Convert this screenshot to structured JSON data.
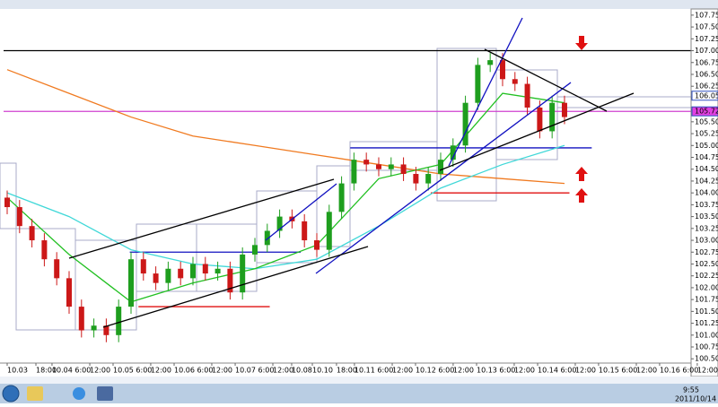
{
  "chart_data": {
    "type": "candlestick",
    "open": [
      103.9,
      103.7,
      103.3,
      103.0,
      102.6,
      102.2,
      101.6,
      101.1,
      101.2,
      101.0,
      101.6,
      102.6,
      102.3,
      102.1,
      102.4,
      102.2,
      102.5,
      102.3,
      102.4,
      101.9,
      102.7,
      102.9,
      103.2,
      103.5,
      103.4,
      103.0,
      102.8,
      103.6,
      104.2,
      104.7,
      104.6,
      104.5,
      104.6,
      104.4,
      104.2,
      104.4,
      104.7,
      105.0,
      105.9,
      106.7,
      106.8,
      106.4,
      106.3,
      105.8,
      105.3,
      105.9
    ],
    "high": [
      104.05,
      103.85,
      103.45,
      103.15,
      102.75,
      102.35,
      101.75,
      101.35,
      101.35,
      101.75,
      102.75,
      102.75,
      102.45,
      102.55,
      102.55,
      102.65,
      102.65,
      102.55,
      102.55,
      102.85,
      103.05,
      103.35,
      103.65,
      103.65,
      103.55,
      103.15,
      103.75,
      104.35,
      104.85,
      104.85,
      104.75,
      104.75,
      104.75,
      104.55,
      104.55,
      104.85,
      105.15,
      106.05,
      106.85,
      106.95,
      106.95,
      106.55,
      106.45,
      105.95,
      106.05,
      106.05
    ],
    "low": [
      103.55,
      103.15,
      102.85,
      102.45,
      102.05,
      101.45,
      100.95,
      100.95,
      100.85,
      100.85,
      101.45,
      102.15,
      101.95,
      101.95,
      102.05,
      102.05,
      102.15,
      102.15,
      101.75,
      101.75,
      102.55,
      102.75,
      103.05,
      103.25,
      102.85,
      102.65,
      102.65,
      103.45,
      104.05,
      104.45,
      104.35,
      104.35,
      104.25,
      104.05,
      104.05,
      104.25,
      104.55,
      104.85,
      105.75,
      106.55,
      106.25,
      106.15,
      105.65,
      105.15,
      105.15,
      105.45
    ],
    "close": [
      103.7,
      103.3,
      103.0,
      102.6,
      102.2,
      101.6,
      101.1,
      101.2,
      101.0,
      101.6,
      102.6,
      102.3,
      102.1,
      102.4,
      102.2,
      102.5,
      102.3,
      102.4,
      101.9,
      102.7,
      102.9,
      103.2,
      103.5,
      103.4,
      103.0,
      102.8,
      103.6,
      104.2,
      104.7,
      104.6,
      104.5,
      104.6,
      104.4,
      104.2,
      104.4,
      104.7,
      105.0,
      105.9,
      106.7,
      106.8,
      106.4,
      106.3,
      105.8,
      105.3,
      105.9,
      105.6
    ],
    "up_color": "#1e9e1e",
    "down_color": "#cc1818",
    "xlim": [
      -0.29,
      55.22
    ],
    "ylim": [
      100.41,
      107.88
    ],
    "yticks": [
      {
        "value": 107.75,
        "label": "107.750"
      },
      {
        "value": 107.5,
        "label": "107.500"
      },
      {
        "value": 107.25,
        "label": "107.250"
      },
      {
        "value": 107,
        "label": "107.000"
      },
      {
        "value": 106.75,
        "label": "106.750"
      },
      {
        "value": 106.5,
        "label": "106.500"
      },
      {
        "value": 106.25,
        "label": "106.250"
      },
      {
        "value": 106,
        "label": "106.000"
      },
      {
        "value": 105.75,
        "label": "105.750"
      },
      {
        "value": 105.5,
        "label": "105.500"
      },
      {
        "value": 105.25,
        "label": "105.250"
      },
      {
        "value": 105,
        "label": "105.000"
      },
      {
        "value": 104.75,
        "label": "104.750"
      },
      {
        "value": 104.5,
        "label": "104.500"
      },
      {
        "value": 104.25,
        "label": "104.250"
      },
      {
        "value": 104,
        "label": "104.000"
      },
      {
        "value": 103.75,
        "label": "103.750"
      },
      {
        "value": 103.5,
        "label": "103.500"
      },
      {
        "value": 103.25,
        "label": "103.250"
      },
      {
        "value": 103,
        "label": "103.000"
      },
      {
        "value": 102.75,
        "label": "102.750"
      },
      {
        "value": 102.5,
        "label": "102.500"
      },
      {
        "value": 102.25,
        "label": "102.250"
      },
      {
        "value": 102,
        "label": "102.000"
      },
      {
        "value": 101.75,
        "label": "101.750"
      },
      {
        "value": 101.5,
        "label": "101.500"
      },
      {
        "value": 101.25,
        "label": "101.250"
      },
      {
        "value": 101,
        "label": "101.000"
      },
      {
        "value": 100.75,
        "label": "100.750"
      },
      {
        "value": 100.5,
        "label": "100.500"
      }
    ],
    "xticks": [
      {
        "value": 0,
        "label": "10.03"
      },
      {
        "value": 2.32,
        "label": "18:00"
      },
      {
        "value": 3.62,
        "label": "10.04 6:00"
      },
      {
        "value": 6.67,
        "label": "12:00"
      },
      {
        "value": 8.55,
        "label": "10.05 6:00"
      },
      {
        "value": 11.59,
        "label": "12:00"
      },
      {
        "value": 13.48,
        "label": "10.06 6:00"
      },
      {
        "value": 16.52,
        "label": "12:00"
      },
      {
        "value": 18.41,
        "label": "10.07 6:00"
      },
      {
        "value": 21.45,
        "label": "12:00"
      },
      {
        "value": 22.97,
        "label": "10.08"
      },
      {
        "value": 24.64,
        "label": "10.10"
      },
      {
        "value": 26.59,
        "label": "18:00"
      },
      {
        "value": 28.04,
        "label": "10.11 6:00"
      },
      {
        "value": 31.09,
        "label": "12:00"
      },
      {
        "value": 32.97,
        "label": "10.12 6:00"
      },
      {
        "value": 36.01,
        "label": "12:00"
      },
      {
        "value": 37.9,
        "label": "10.13 6:00"
      },
      {
        "value": 40.94,
        "label": "12:00"
      },
      {
        "value": 42.83,
        "label": "10.14 6:00"
      },
      {
        "value": 45.87,
        "label": "12:00"
      },
      {
        "value": 47.75,
        "label": "10.15 6:00"
      },
      {
        "value": 50.8,
        "label": "12:00"
      },
      {
        "value": 52.68,
        "label": "10.16 6:00"
      },
      {
        "value": 55.72,
        "label": "12:00"
      }
    ],
    "lines": [
      {
        "color": "#f07a20",
        "x": [
          0,
          5,
          10,
          15,
          20,
          25,
          30,
          35,
          40,
          45
        ],
        "values": [
          106.6,
          106.1,
          105.6,
          105.2,
          105.0,
          104.8,
          104.6,
          104.4,
          104.3,
          104.2
        ]
      },
      {
        "color": "#40d8d8",
        "x": [
          0,
          5,
          10,
          15,
          20,
          25,
          30,
          35,
          40,
          45
        ],
        "values": [
          104.0,
          103.5,
          102.8,
          102.5,
          102.4,
          102.6,
          103.3,
          104.1,
          104.6,
          105.0
        ]
      },
      {
        "color": "#22c022",
        "x": [
          0,
          5,
          10,
          15,
          20,
          25,
          30,
          35,
          40,
          45
        ],
        "values": [
          103.9,
          102.7,
          101.7,
          102.1,
          102.4,
          102.9,
          104.3,
          104.6,
          106.1,
          105.9
        ]
      }
    ],
    "hlines": [
      {
        "value": 107.0,
        "color": "#000000",
        "x": [
          -0.29,
          55.22
        ]
      },
      {
        "value": 105.72,
        "color": "#d040d0",
        "x": [
          -0.29,
          55.22
        ]
      },
      {
        "value": 104.95,
        "color": "#1010c0",
        "x": [
          27.7,
          47.2
        ]
      },
      {
        "value": 104.0,
        "color": "#e01010",
        "x": [
          34.2,
          45.4
        ]
      },
      {
        "value": 102.75,
        "color": "#1010c0",
        "x": [
          9.9,
          23.7
        ]
      },
      {
        "value": 101.6,
        "color": "#e01010",
        "x": [
          10.6,
          21.2
        ]
      }
    ],
    "price_labels": [
      {
        "value": 106.05,
        "label": "106.050",
        "color": "#ffffff"
      },
      {
        "value": 105.72,
        "label": "105.720",
        "color": "#e040e0"
      }
    ]
  },
  "taskbar": {
    "time": "9:55",
    "date": "2011/10/14"
  }
}
